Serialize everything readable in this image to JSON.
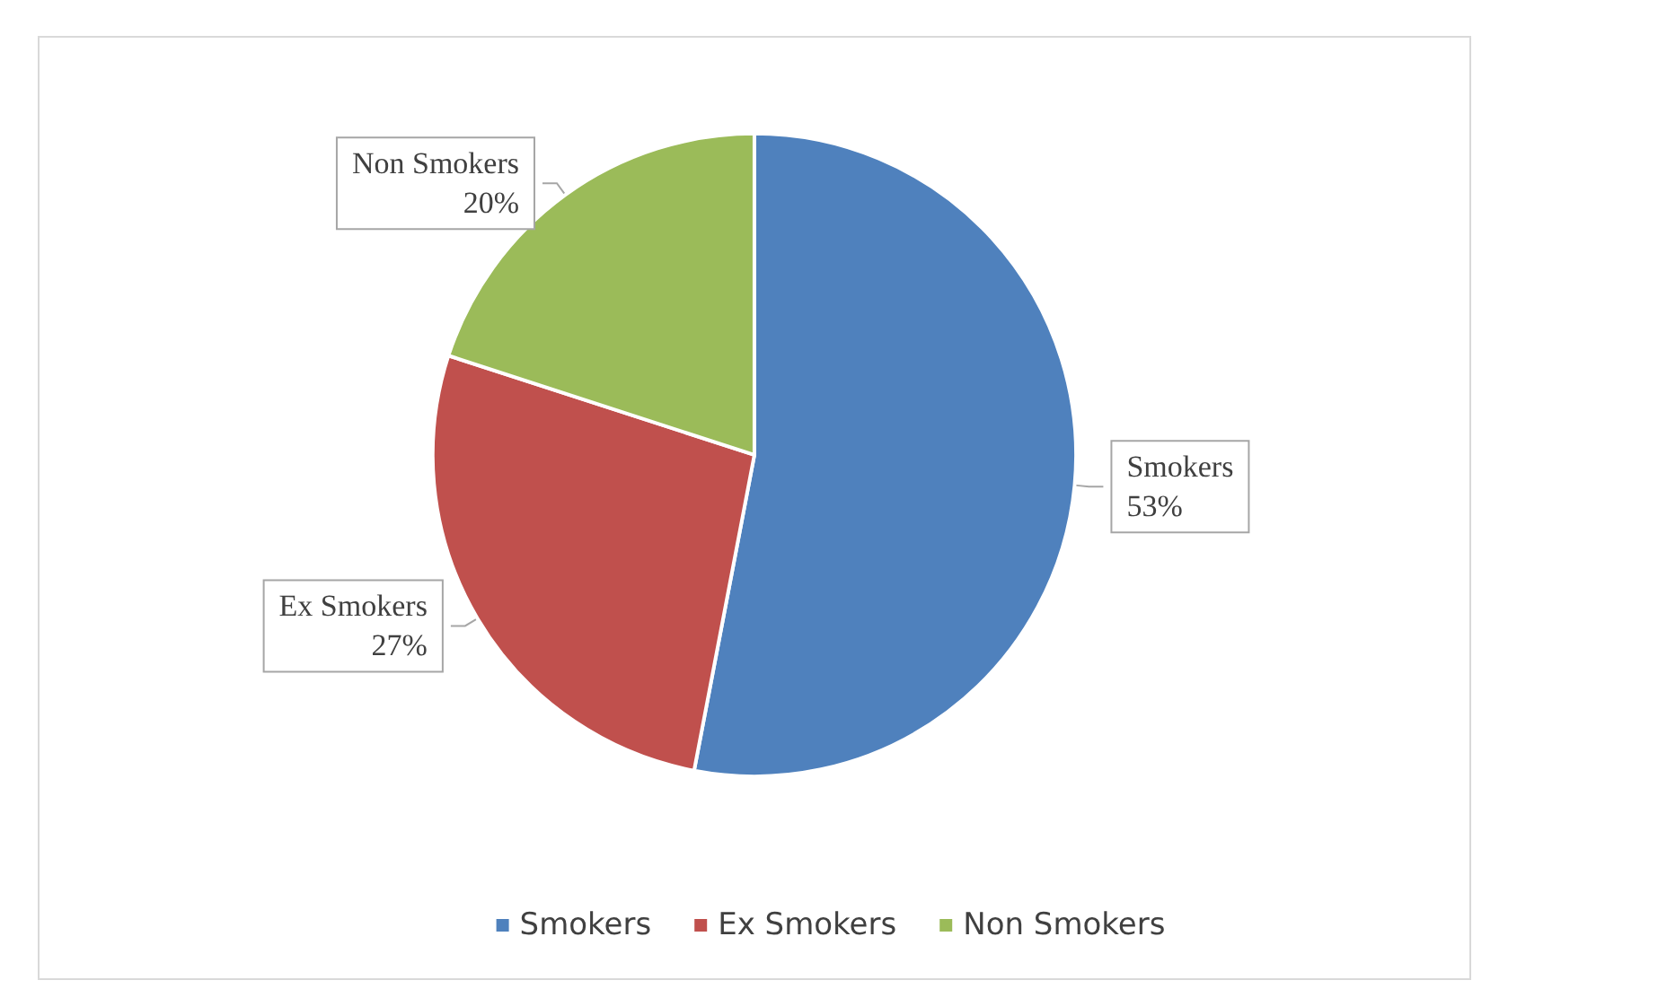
{
  "chart_data": {
    "type": "pie",
    "categories": [
      "Smokers",
      "Ex Smokers",
      "Non Smokers"
    ],
    "values": [
      53,
      27,
      20
    ],
    "colors": [
      "#4f81bd",
      "#c0504d",
      "#9bbb59"
    ],
    "value_labels": [
      "53%",
      "27%",
      "20%"
    ],
    "legend": "bottom"
  }
}
